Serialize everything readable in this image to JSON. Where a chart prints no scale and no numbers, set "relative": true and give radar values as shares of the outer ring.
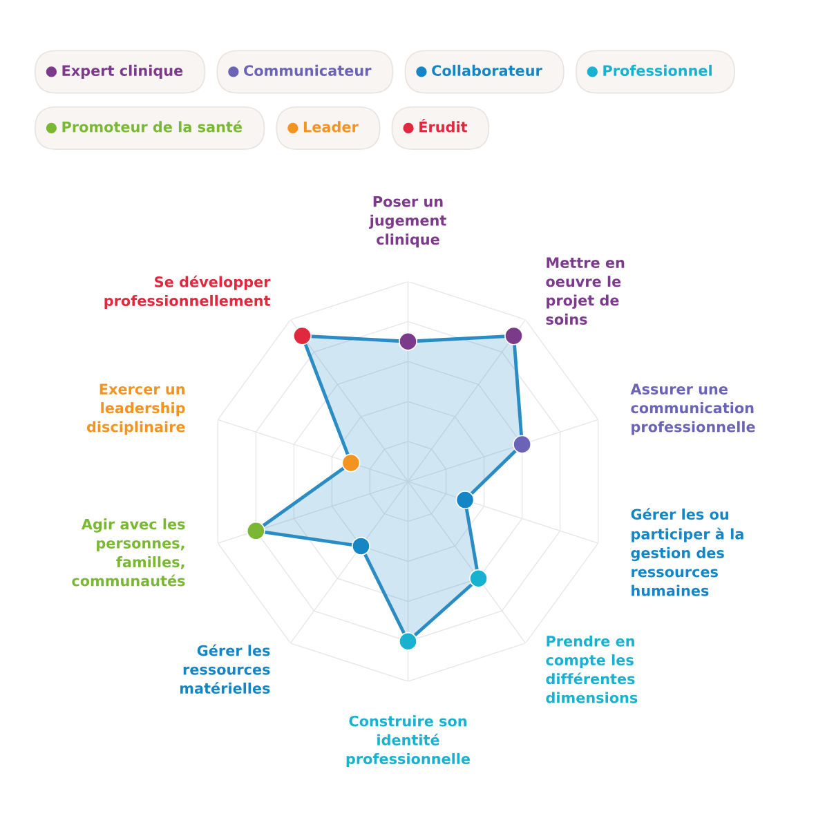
{
  "chart_data": {
    "type": "radar",
    "relative": true,
    "grid": true,
    "marker": "circle",
    "categories": [
      "Poser un\njugement\nclinique",
      "Mettre en\noeuvre le\nprojet de\nsoins",
      "Assurer une\ncommunication\nprofessionnelle",
      "Gérer les ou\nparticiper à la\ngestion des\nressources\nhumaines",
      "Prendre en\ncompte les\ndifférentes\ndimensions",
      "Construire son\nidentité\nprofessionnelle",
      "Gérer les\nressources\nmatérielles",
      "Agir avec les\npersonnes,\nfamilles,\ncommunautés",
      "Exercer un\nleadership\ndisciplinaire",
      "Se développer\nprofessionnellement"
    ],
    "series": [
      {
        "color": "#2b8cc4",
        "values": [
          0.7,
          0.9,
          0.6,
          0.3,
          0.6,
          0.8,
          0.4,
          0.8,
          0.3,
          0.9
        ],
        "colors": [
          "#7b3a8a",
          "#7b3a8a",
          "#6b63b5",
          "#1486c6",
          "#18b1cf",
          "#18b1cf",
          "#1486c6",
          "#7ab834",
          "#f39321",
          "#e0283f"
        ]
      }
    ],
    "annotations": [
      "Expert clinique",
      "Communicateur",
      "Collaborateur",
      "Professionnel",
      "Promoteur de la santé",
      "Leader",
      "Érudit"
    ]
  }
}
